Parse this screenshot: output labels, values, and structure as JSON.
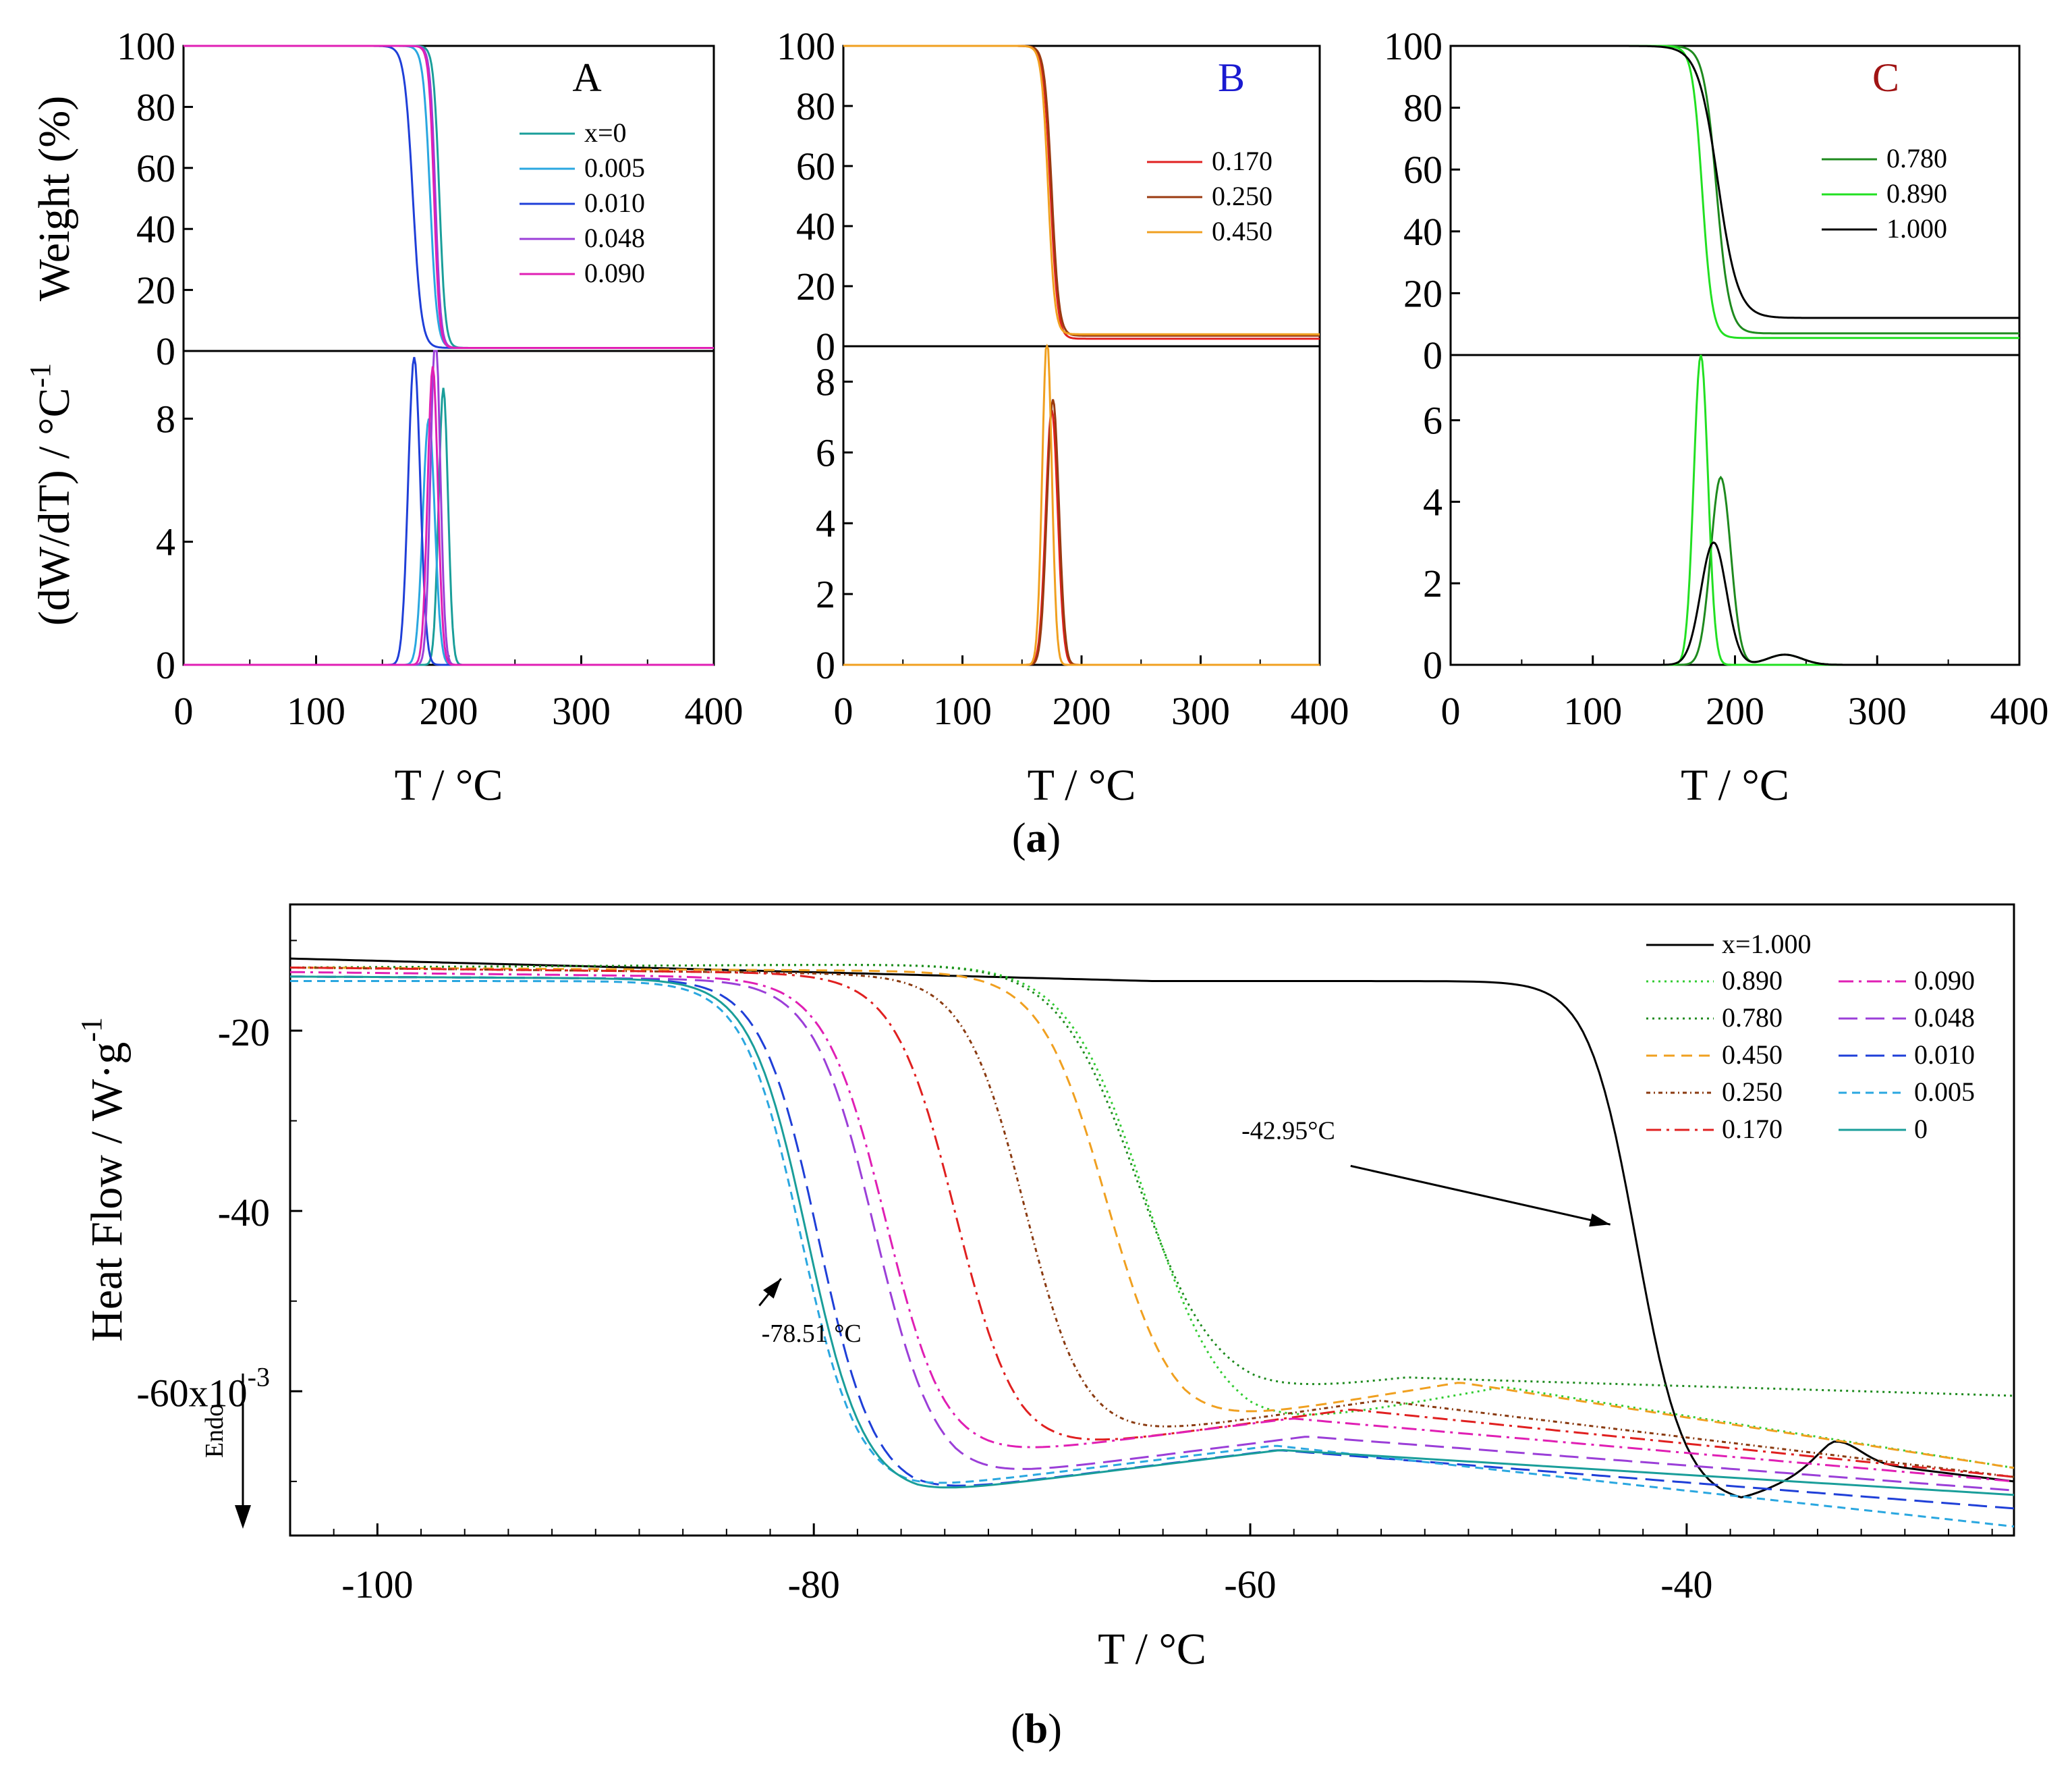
{
  "figure": {
    "sublabel_a": {
      "open": "(",
      "letter": "a",
      "close": ")"
    },
    "sublabel_b": {
      "open": "(",
      "letter": "b",
      "close": ")"
    }
  },
  "chart_data": [
    {
      "id": "A",
      "type": "line",
      "panel_label": "A",
      "panel_label_color": "#000000",
      "xlabel": "T / °C",
      "ylabel_top": "Weight (%)",
      "ylabel_bottom_base": "(dW/dT) / °C",
      "ylabel_bottom_sup": "-1",
      "xlim": [
        0,
        400
      ],
      "xticks": [
        0,
        100,
        200,
        300,
        400
      ],
      "top": {
        "ylim": [
          0,
          100
        ],
        "yticks": [
          0,
          20,
          40,
          60,
          80,
          100
        ]
      },
      "bottom": {
        "ylim": [
          0,
          10.2
        ],
        "yticks": [
          0,
          4,
          8
        ]
      },
      "series": [
        {
          "name": "x=0",
          "color": "#1a9e9a",
          "onset": 193,
          "k": 2.2,
          "residue": 1.0,
          "peak_t": 196,
          "peak_h": 9.0,
          "peak_w": 3.5
        },
        {
          "name": "0.005",
          "color": "#2aa7e0",
          "onset": 186,
          "k": 2.6,
          "residue": 1.0,
          "peak_t": 185,
          "peak_h": 8.0,
          "peak_w": 4.5
        },
        {
          "name": "0.010",
          "color": "#1f3fd8",
          "onset": 173,
          "k": 3.2,
          "residue": 1.0,
          "peak_t": 174,
          "peak_h": 10.0,
          "peak_w": 4.5
        },
        {
          "name": "0.048",
          "color": "#9b3fd8",
          "onset": 190,
          "k": 2.0,
          "residue": 1.0,
          "peak_t": 190,
          "peak_h": 10.9,
          "peak_w": 3.6
        },
        {
          "name": "0.090",
          "color": "#e01fb4",
          "onset": 189,
          "k": 2.0,
          "residue": 1.0,
          "peak_t": 188,
          "peak_h": 9.7,
          "peak_w": 3.8
        }
      ]
    },
    {
      "id": "B",
      "type": "line",
      "panel_label": "B",
      "panel_label_color": "#1a1ad0",
      "xlabel": "T / °C",
      "xlim": [
        0,
        400
      ],
      "xticks": [
        0,
        100,
        200,
        300,
        400
      ],
      "top": {
        "ylim": [
          0,
          100
        ],
        "yticks": [
          0,
          20,
          40,
          60,
          80,
          100
        ]
      },
      "bottom": {
        "ylim": [
          0,
          9.0
        ],
        "yticks": [
          0,
          2,
          4,
          6,
          8
        ]
      },
      "series": [
        {
          "name": "0.170",
          "color": "#e02020",
          "onset": 174,
          "k": 3.0,
          "residue": 2.5,
          "peak_t": 175,
          "peak_h": 7.2,
          "peak_w": 5.0
        },
        {
          "name": "0.250",
          "color": "#9a3a10",
          "onset": 175,
          "k": 3.0,
          "residue": 3.5,
          "peak_t": 176,
          "peak_h": 7.5,
          "peak_w": 5.0
        },
        {
          "name": "0.450",
          "color": "#f0a020",
          "onset": 172,
          "k": 2.8,
          "residue": 4.0,
          "peak_t": 171,
          "peak_h": 9.2,
          "peak_w": 4.0
        }
      ]
    },
    {
      "id": "C",
      "type": "line",
      "panel_label": "C",
      "panel_label_color": "#a01414",
      "xlabel": "T / °C",
      "xlim": [
        0,
        400
      ],
      "xticks": [
        0,
        100,
        200,
        300,
        400
      ],
      "top": {
        "ylim": [
          0,
          100
        ],
        "yticks": [
          0,
          20,
          40,
          60,
          80,
          100
        ]
      },
      "bottom": {
        "ylim": [
          0,
          7.6
        ],
        "yticks": [
          0,
          2,
          4,
          6
        ]
      },
      "series": [
        {
          "name": "0.780",
          "color": "#1e8a1e",
          "onset": 187,
          "k": 4.5,
          "residue": 7.0,
          "peak_t": 190,
          "peak_h": 4.6,
          "peak_w": 7.0
        },
        {
          "name": "0.890",
          "color": "#22e022",
          "onset": 177,
          "k": 3.5,
          "residue": 5.5,
          "peak_t": 176,
          "peak_h": 7.6,
          "peak_w": 5.0
        },
        {
          "name": "1.000",
          "color": "#000000",
          "onset": 188,
          "k": 7.0,
          "residue": 12.0,
          "peak_t": 185,
          "peak_h": 3.0,
          "peak_w": 9.0
        }
      ]
    },
    {
      "id": "DSC",
      "type": "line",
      "xlabel": "T / °C",
      "ylabel_base": "Heat Flow / W·g",
      "ylabel_sup": "-1",
      "y_multiplier_label": "x10",
      "y_multiplier_sup": "-3",
      "endo_label": "Endo",
      "xlim": [
        -104,
        -25
      ],
      "xticks": [
        -100,
        -80,
        -60,
        -40
      ],
      "ylim": [
        -76,
        -6
      ],
      "yticks": [
        {
          "value": -20,
          "label": "-20"
        },
        {
          "value": -40,
          "label": "-40"
        },
        {
          "value": -60,
          "label": "-60"
        }
      ],
      "annotations": [
        {
          "text": "-42.95°C",
          "tx": -60.4,
          "ty": -32,
          "arrow_from": [
            -55.4,
            -35
          ],
          "arrow_to": [
            -43.5,
            -41.5
          ]
        },
        {
          "text": "-78.51 °C",
          "tx": -82.4,
          "ty": -54.5,
          "arrow_from": [
            -82.5,
            -50.5
          ],
          "arrow_to": [
            -81.5,
            -47.5
          ]
        }
      ],
      "series": [
        {
          "name": "x=1.000",
          "color": "#000000",
          "dash": "",
          "start": -12,
          "plateau": -14.5,
          "tm": -42.3,
          "w": 1.1,
          "dip": -72.5,
          "tdip": -37.5,
          "end": -70,
          "post": "bump"
        },
        {
          "name": "0.890",
          "color": "#33cc33",
          "dash": "3,6",
          "start": -13,
          "plateau": -12.5,
          "tm": -64.8,
          "w": 1.8,
          "dip": -64.5,
          "tdip": -60,
          "end": -68.5
        },
        {
          "name": "0.780",
          "color": "#1e8a1e",
          "dash": "3,6",
          "start": -13,
          "plateau": -12.5,
          "tm": -65.2,
          "w": 1.8,
          "dip": -60.5,
          "tdip": -59.8,
          "end": -61.0,
          "mid": -58.5
        },
        {
          "name": "0.450",
          "color": "#f0a020",
          "dash": "16,10",
          "start": -13,
          "plateau": -13.5,
          "tm": -66.6,
          "w": 1.5,
          "dip": -64,
          "tdip": -63,
          "end": -68.5
        },
        {
          "name": "0.250",
          "color": "#8a3a10",
          "dash": "6,5,2,5",
          "start": -13,
          "plateau": -14,
          "tm": -70.3,
          "w": 1.4,
          "dip": -66,
          "tdip": -68.5,
          "end": -69.5
        },
        {
          "name": "0.170",
          "color": "#e02020",
          "dash": "22,8,4,8",
          "start": -13,
          "plateau": -14,
          "tm": -73.5,
          "w": 1.4,
          "dip": -67,
          "tdip": -70.5,
          "end": -69.5
        },
        {
          "name": "0.090",
          "color": "#e01fb4",
          "dash": "22,8,4,8",
          "start": -13.5,
          "plateau": -14.5,
          "tm": -76.7,
          "w": 1.4,
          "dip": -68,
          "tdip": -74.5,
          "end": -70
        },
        {
          "name": "0.048",
          "color": "#9b3fd8",
          "dash": "28,12",
          "start": -14,
          "plateau": -14.5,
          "tm": -77.2,
          "w": 1.4,
          "dip": -70,
          "tdip": -73.5,
          "end": -71
        },
        {
          "name": "0.010",
          "color": "#1f3fd8",
          "dash": "28,12",
          "start": -14,
          "plateau": -14.5,
          "tm": -79.8,
          "w": 1.3,
          "dip": -71.5,
          "tdip": -75.5,
          "end": -73
        },
        {
          "name": "0.005",
          "color": "#2aa7e0",
          "dash": "12,8",
          "start": -14.5,
          "plateau": -14.5,
          "tm": -80.6,
          "w": 1.3,
          "dip": -71,
          "tdip": -75.7,
          "end": -75
        },
        {
          "name": "0",
          "color": "#1a9e9a",
          "dash": "",
          "start": -14,
          "plateau": -14.5,
          "tm": -80.3,
          "w": 1.3,
          "dip": -71.5,
          "tdip": -75.3,
          "end": -71.5
        }
      ]
    }
  ]
}
